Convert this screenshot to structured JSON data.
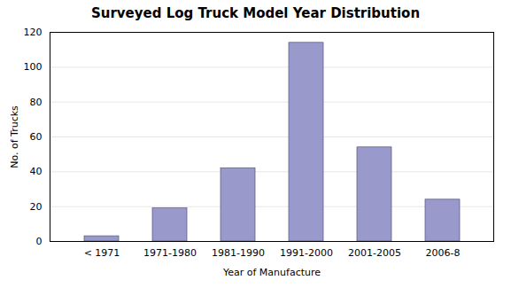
{
  "chart_data": {
    "type": "bar",
    "title": "Surveyed Log Truck Model Year Distribution",
    "xlabel": "Year of Manufacture",
    "ylabel": "No. of Trucks",
    "categories": [
      "< 1971",
      "1971-1980",
      "1981-1990",
      "1991-2000",
      "2001-2005",
      "2006-8"
    ],
    "values": [
      3,
      19,
      42,
      114,
      54,
      24
    ],
    "color": "#9999cc",
    "ylim": [
      0,
      120
    ],
    "yticks": [
      0,
      20,
      40,
      60,
      80,
      100,
      120
    ],
    "grid": true
  }
}
